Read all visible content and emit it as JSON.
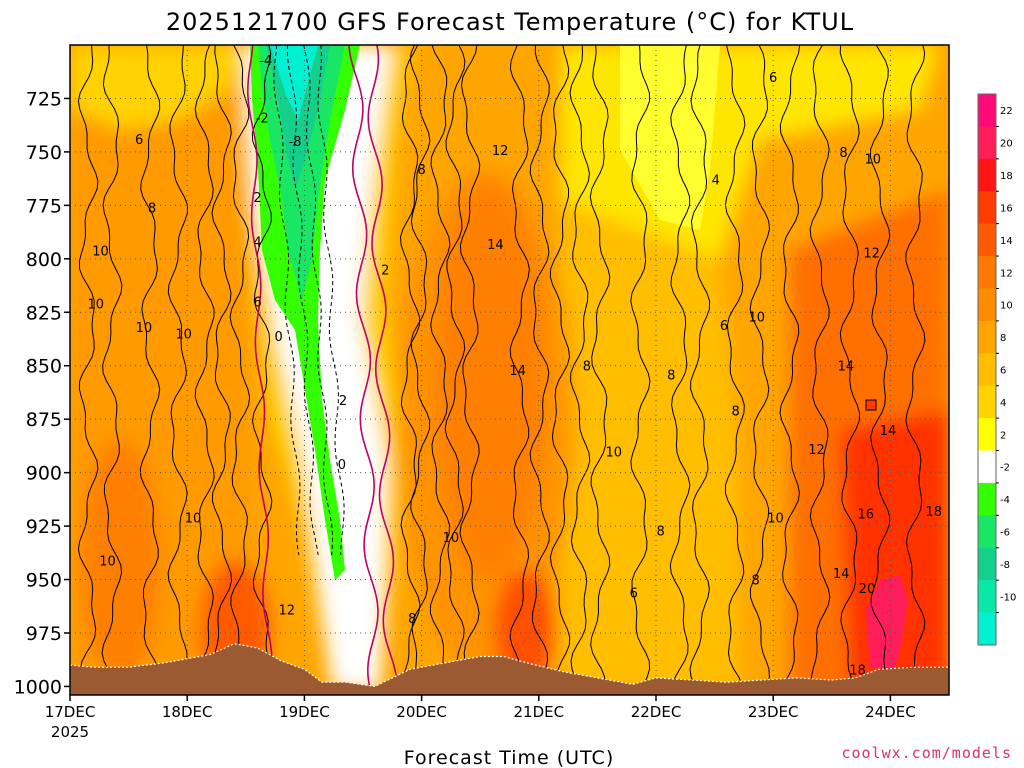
{
  "chart_data": {
    "type": "heatmap",
    "title": "2025121700 GFS Forecast Temperature (°C) for KTUL",
    "xlabel": "Forecast Time (UTC)",
    "ylabel": "",
    "x_ticks": [
      "17DEC",
      "18DEC",
      "19DEC",
      "20DEC",
      "21DEC",
      "22DEC",
      "23DEC",
      "24DEC"
    ],
    "x_tick_sublabel": "2025",
    "y_ticks": [
      725,
      750,
      775,
      800,
      825,
      850,
      875,
      900,
      925,
      950,
      975,
      1000
    ],
    "y_range_hpa": [
      700,
      1004
    ],
    "x_range_days": [
      17.0,
      24.5
    ],
    "grid": true,
    "colorbar": {
      "labels": [
        22,
        20,
        18,
        16,
        14,
        12,
        10,
        8,
        6,
        4,
        2,
        -2,
        -4,
        -6,
        -8,
        -10
      ],
      "colors": {
        "23_24": "#ff0a78",
        "20_22": "#ff1e5a",
        "18_20": "#ff1414",
        "16_18": "#ff3c00",
        "14_16": "#ff5a00",
        "12_14": "#ff7800",
        "10_12": "#ff8c00",
        "8_10": "#ffa500",
        "6_8": "#ffbe00",
        "4_6": "#ffd200",
        "2_4": "#ffff00",
        "-2_2": "#ffffff",
        "-4_-2": "#33ff00",
        "-6_-4": "#1ae666",
        "-8_-6": "#14d08c",
        "-10_-8": "#0ae8a8",
        "lt_-10": "#00f0d2"
      }
    },
    "contour_labels": [
      {
        "t": 17.59,
        "p": 744,
        "v": "6"
      },
      {
        "t": 17.7,
        "p": 776,
        "v": "8"
      },
      {
        "t": 17.26,
        "p": 796,
        "v": "10"
      },
      {
        "t": 17.22,
        "p": 821,
        "v": "10"
      },
      {
        "t": 17.63,
        "p": 832,
        "v": "10"
      },
      {
        "t": 17.97,
        "p": 835,
        "v": "10"
      },
      {
        "t": 18.05,
        "p": 921,
        "v": "10"
      },
      {
        "t": 17.32,
        "p": 941,
        "v": "10"
      },
      {
        "t": 18.85,
        "p": 964,
        "v": "12"
      },
      {
        "t": 18.67,
        "p": 707,
        "v": "-4"
      },
      {
        "t": 18.64,
        "p": 734,
        "v": "-2"
      },
      {
        "t": 18.92,
        "p": 745,
        "v": "-8"
      },
      {
        "t": 18.6,
        "p": 771,
        "v": "2"
      },
      {
        "t": 18.6,
        "p": 792,
        "v": "4"
      },
      {
        "t": 18.6,
        "p": 820,
        "v": "6"
      },
      {
        "t": 18.78,
        "p": 836,
        "v": "0"
      },
      {
        "t": 19.33,
        "p": 866,
        "v": "2"
      },
      {
        "t": 19.32,
        "p": 896,
        "v": "0"
      },
      {
        "t": 19.69,
        "p": 805,
        "v": "2"
      },
      {
        "t": 20.0,
        "p": 758,
        "v": "8"
      },
      {
        "t": 20.67,
        "p": 749,
        "v": "12"
      },
      {
        "t": 20.63,
        "p": 793,
        "v": "14"
      },
      {
        "t": 20.82,
        "p": 852,
        "v": "14"
      },
      {
        "t": 20.25,
        "p": 930,
        "v": "10"
      },
      {
        "t": 19.92,
        "p": 968,
        "v": "8"
      },
      {
        "t": 21.41,
        "p": 850,
        "v": "8"
      },
      {
        "t": 21.64,
        "p": 890,
        "v": "10"
      },
      {
        "t": 22.04,
        "p": 927,
        "v": "8"
      },
      {
        "t": 21.81,
        "p": 956,
        "v": "6"
      },
      {
        "t": 22.13,
        "p": 854,
        "v": "8"
      },
      {
        "t": 22.51,
        "p": 763,
        "v": "4"
      },
      {
        "t": 22.58,
        "p": 831,
        "v": "6"
      },
      {
        "t": 22.68,
        "p": 871,
        "v": "8"
      },
      {
        "t": 22.86,
        "p": 827,
        "v": "10"
      },
      {
        "t": 23.02,
        "p": 921,
        "v": "10"
      },
      {
        "t": 22.85,
        "p": 950,
        "v": "8"
      },
      {
        "t": 23.0,
        "p": 715,
        "v": "6"
      },
      {
        "t": 23.6,
        "p": 750,
        "v": "8"
      },
      {
        "t": 23.85,
        "p": 753,
        "v": "10"
      },
      {
        "t": 23.84,
        "p": 797,
        "v": "12"
      },
      {
        "t": 23.62,
        "p": 850,
        "v": "14"
      },
      {
        "t": 23.98,
        "p": 880,
        "v": "14"
      },
      {
        "t": 23.37,
        "p": 889,
        "v": "12"
      },
      {
        "t": 23.79,
        "p": 919,
        "v": "16"
      },
      {
        "t": 24.37,
        "p": 918,
        "v": "18"
      },
      {
        "t": 23.58,
        "p": 947,
        "v": "14"
      },
      {
        "t": 23.8,
        "p": 954,
        "v": "20"
      },
      {
        "t": 23.72,
        "p": 992,
        "v": "18"
      }
    ],
    "surface_pressure_hpa": [
      [
        17.0,
        990
      ],
      [
        17.2,
        991
      ],
      [
        17.5,
        991
      ],
      [
        17.8,
        989
      ],
      [
        18.0,
        987
      ],
      [
        18.2,
        985
      ],
      [
        18.4,
        980
      ],
      [
        18.6,
        982
      ],
      [
        18.8,
        988
      ],
      [
        19.0,
        992
      ],
      [
        19.15,
        998
      ],
      [
        19.35,
        998
      ],
      [
        19.6,
        1000
      ],
      [
        19.9,
        992
      ],
      [
        20.2,
        989
      ],
      [
        20.5,
        986
      ],
      [
        20.7,
        986
      ],
      [
        20.9,
        989
      ],
      [
        21.2,
        993
      ],
      [
        21.5,
        996
      ],
      [
        21.8,
        999
      ],
      [
        22.0,
        996
      ],
      [
        22.3,
        997
      ],
      [
        22.6,
        998
      ],
      [
        22.9,
        997
      ],
      [
        23.2,
        996
      ],
      [
        23.5,
        997
      ],
      [
        23.7,
        996
      ],
      [
        23.9,
        992
      ],
      [
        24.2,
        991
      ],
      [
        24.5,
        991
      ]
    ]
  },
  "credit": "coolwx.com/models"
}
